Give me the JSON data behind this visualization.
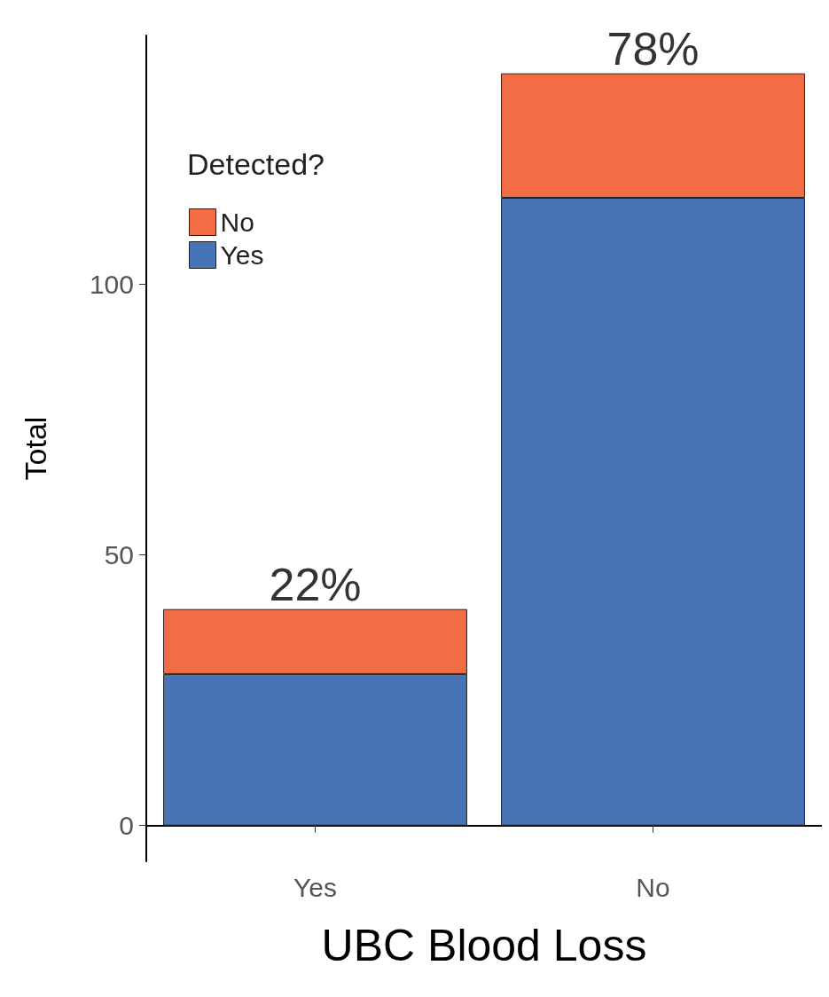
{
  "chart_data": {
    "type": "bar",
    "stacked": true,
    "categories": [
      "Yes",
      "No"
    ],
    "series": [
      {
        "name": "Yes",
        "color": "#4674b4",
        "values": [
          28,
          116
        ]
      },
      {
        "name": "No",
        "color": "#f26d45",
        "values": [
          12,
          23
        ]
      }
    ],
    "xlabel": "UBC Blood Loss",
    "ylabel": "Total",
    "legend_title": "Detected?",
    "legend": "top left",
    "ylim": [
      -6.6,
      146
    ],
    "yticks": [
      0,
      50,
      100
    ],
    "grid": false,
    "annotations": [
      {
        "text": "22%",
        "x": "Yes",
        "y": 40
      },
      {
        "text": "78%",
        "x": "No",
        "y": 139
      }
    ]
  }
}
